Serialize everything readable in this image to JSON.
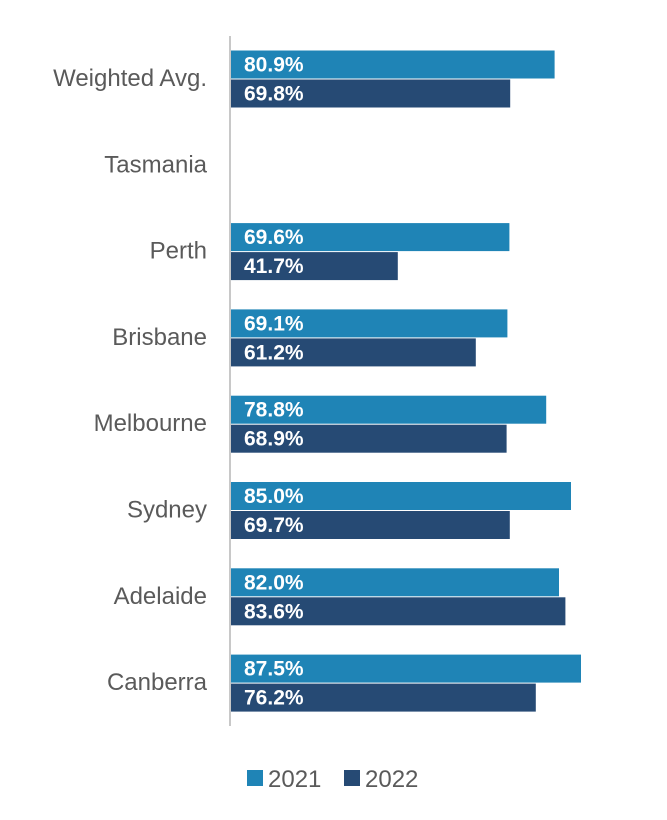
{
  "chart_data": {
    "type": "bar",
    "orientation": "horizontal",
    "categories": [
      "Weighted Avg.",
      "Tasmania",
      "Perth",
      "Brisbane",
      "Melbourne",
      "Sydney",
      "Adelaide",
      "Canberra"
    ],
    "series": [
      {
        "name": "2021",
        "color": "#1f84b6",
        "values": [
          80.9,
          null,
          69.6,
          69.1,
          78.8,
          85.0,
          82.0,
          87.5
        ],
        "labels": [
          "80.9%",
          "",
          "69.6%",
          "69.1%",
          "78.8%",
          "85.0%",
          "82.0%",
          "87.5%"
        ]
      },
      {
        "name": "2022",
        "color": "#264a74",
        "values": [
          69.8,
          null,
          41.7,
          61.2,
          68.9,
          69.7,
          83.6,
          76.2
        ],
        "labels": [
          "69.8%",
          "",
          "41.7%",
          "61.2%",
          "68.9%",
          "69.7%",
          "83.6%",
          "76.2%"
        ]
      }
    ],
    "xlim": [
      0,
      90
    ],
    "axis_color": "#c8c8c8",
    "grid": false,
    "legend_position": "bottom-center"
  }
}
